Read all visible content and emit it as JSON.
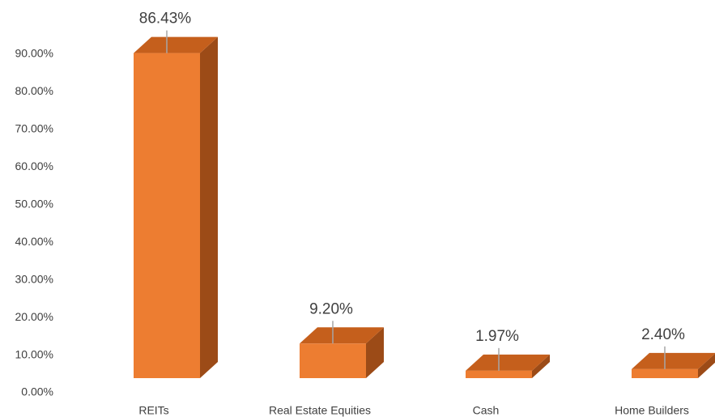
{
  "chart_data": {
    "type": "bar3d",
    "categories": [
      "REITs",
      "Real Estate Equities",
      "Cash",
      "Home Builders"
    ],
    "values": [
      86.43,
      9.2,
      1.97,
      2.4
    ],
    "value_labels": [
      "86.43%",
      "9.20%",
      "1.97%",
      "2.40%"
    ],
    "color": "#ed7d31",
    "ylim": [
      0,
      90
    ],
    "yticks": [
      {
        "value": 0,
        "label": "0.00%"
      },
      {
        "value": 10,
        "label": "10.00%"
      },
      {
        "value": 20,
        "label": "20.00%"
      },
      {
        "value": 30,
        "label": "30.00%"
      },
      {
        "value": 40,
        "label": "40.00%"
      },
      {
        "value": 50,
        "label": "50.00%"
      },
      {
        "value": 60,
        "label": "60.00%"
      },
      {
        "value": 70,
        "label": "70.00%"
      },
      {
        "value": 80,
        "label": "80.00%"
      },
      {
        "value": 90,
        "label": "90.00%"
      }
    ],
    "grid": false
  }
}
